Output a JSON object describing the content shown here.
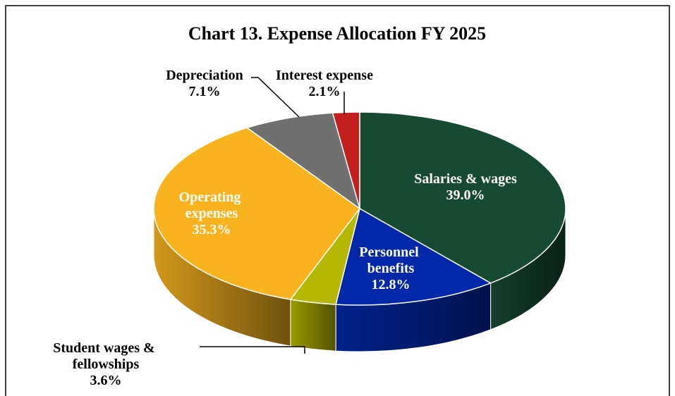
{
  "chart_data": {
    "type": "pie3d",
    "title": "Chart 13. Expense Allocation FY 2025",
    "categories": [
      "Salaries & wages",
      "Personnel benefits",
      "Student wages & fellowships",
      "Operating expenses",
      "Depreciation",
      "Interest expense"
    ],
    "values": [
      39.0,
      12.8,
      3.6,
      35.3,
      7.1,
      2.1
    ],
    "value_labels": [
      "39.0%",
      "12.8%",
      "3.6%",
      "35.3%",
      "7.1%",
      "2.1%"
    ],
    "colors": [
      "#174a33",
      "#0028a8",
      "#b5b800",
      "#f8b31e",
      "#707070",
      "#c4201f"
    ]
  }
}
